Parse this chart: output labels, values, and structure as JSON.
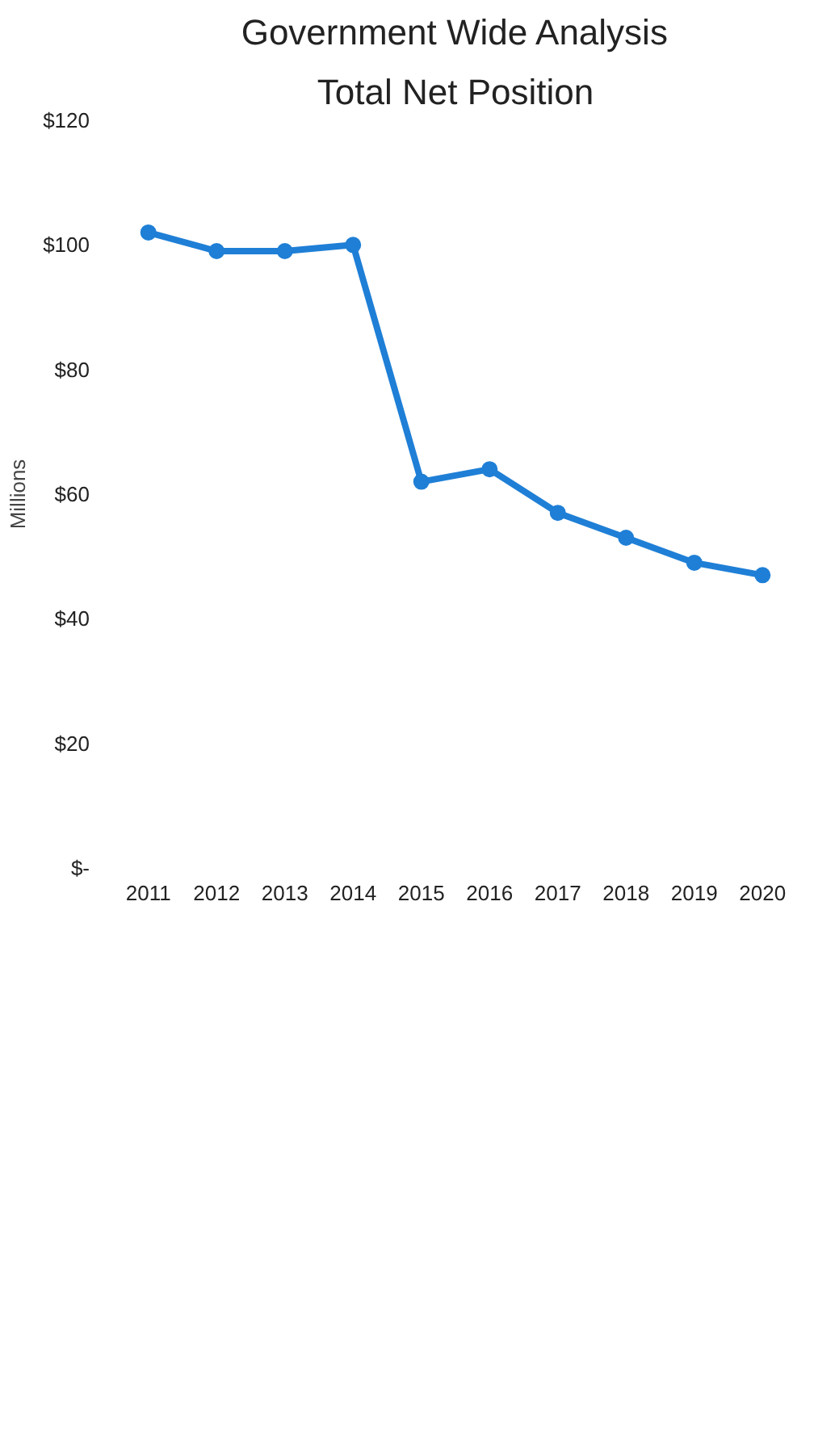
{
  "chart_data": {
    "type": "line",
    "title": "Government Wide Analysis",
    "subtitle": "Total Net Position",
    "ylabel": "Millions",
    "categories": [
      "2011",
      "2012",
      "2013",
      "2014",
      "2015",
      "2016",
      "2017",
      "2018",
      "2019",
      "2020"
    ],
    "series": [
      {
        "color": "#1f7fd6",
        "values": [
          102,
          99,
          99,
          100,
          62,
          64,
          57,
          53,
          49,
          47
        ]
      }
    ],
    "ylim": [
      0,
      120
    ],
    "yticks": [
      {
        "value": 0,
        "label": "$-"
      },
      {
        "value": 20,
        "label": "$20"
      },
      {
        "value": 40,
        "label": "$40"
      },
      {
        "value": 60,
        "label": "$60"
      },
      {
        "value": 80,
        "label": "$80"
      },
      {
        "value": 100,
        "label": "$100"
      },
      {
        "value": 120,
        "label": "$120"
      }
    ],
    "grid": false,
    "marker": "circle",
    "line_style": "solid"
  }
}
